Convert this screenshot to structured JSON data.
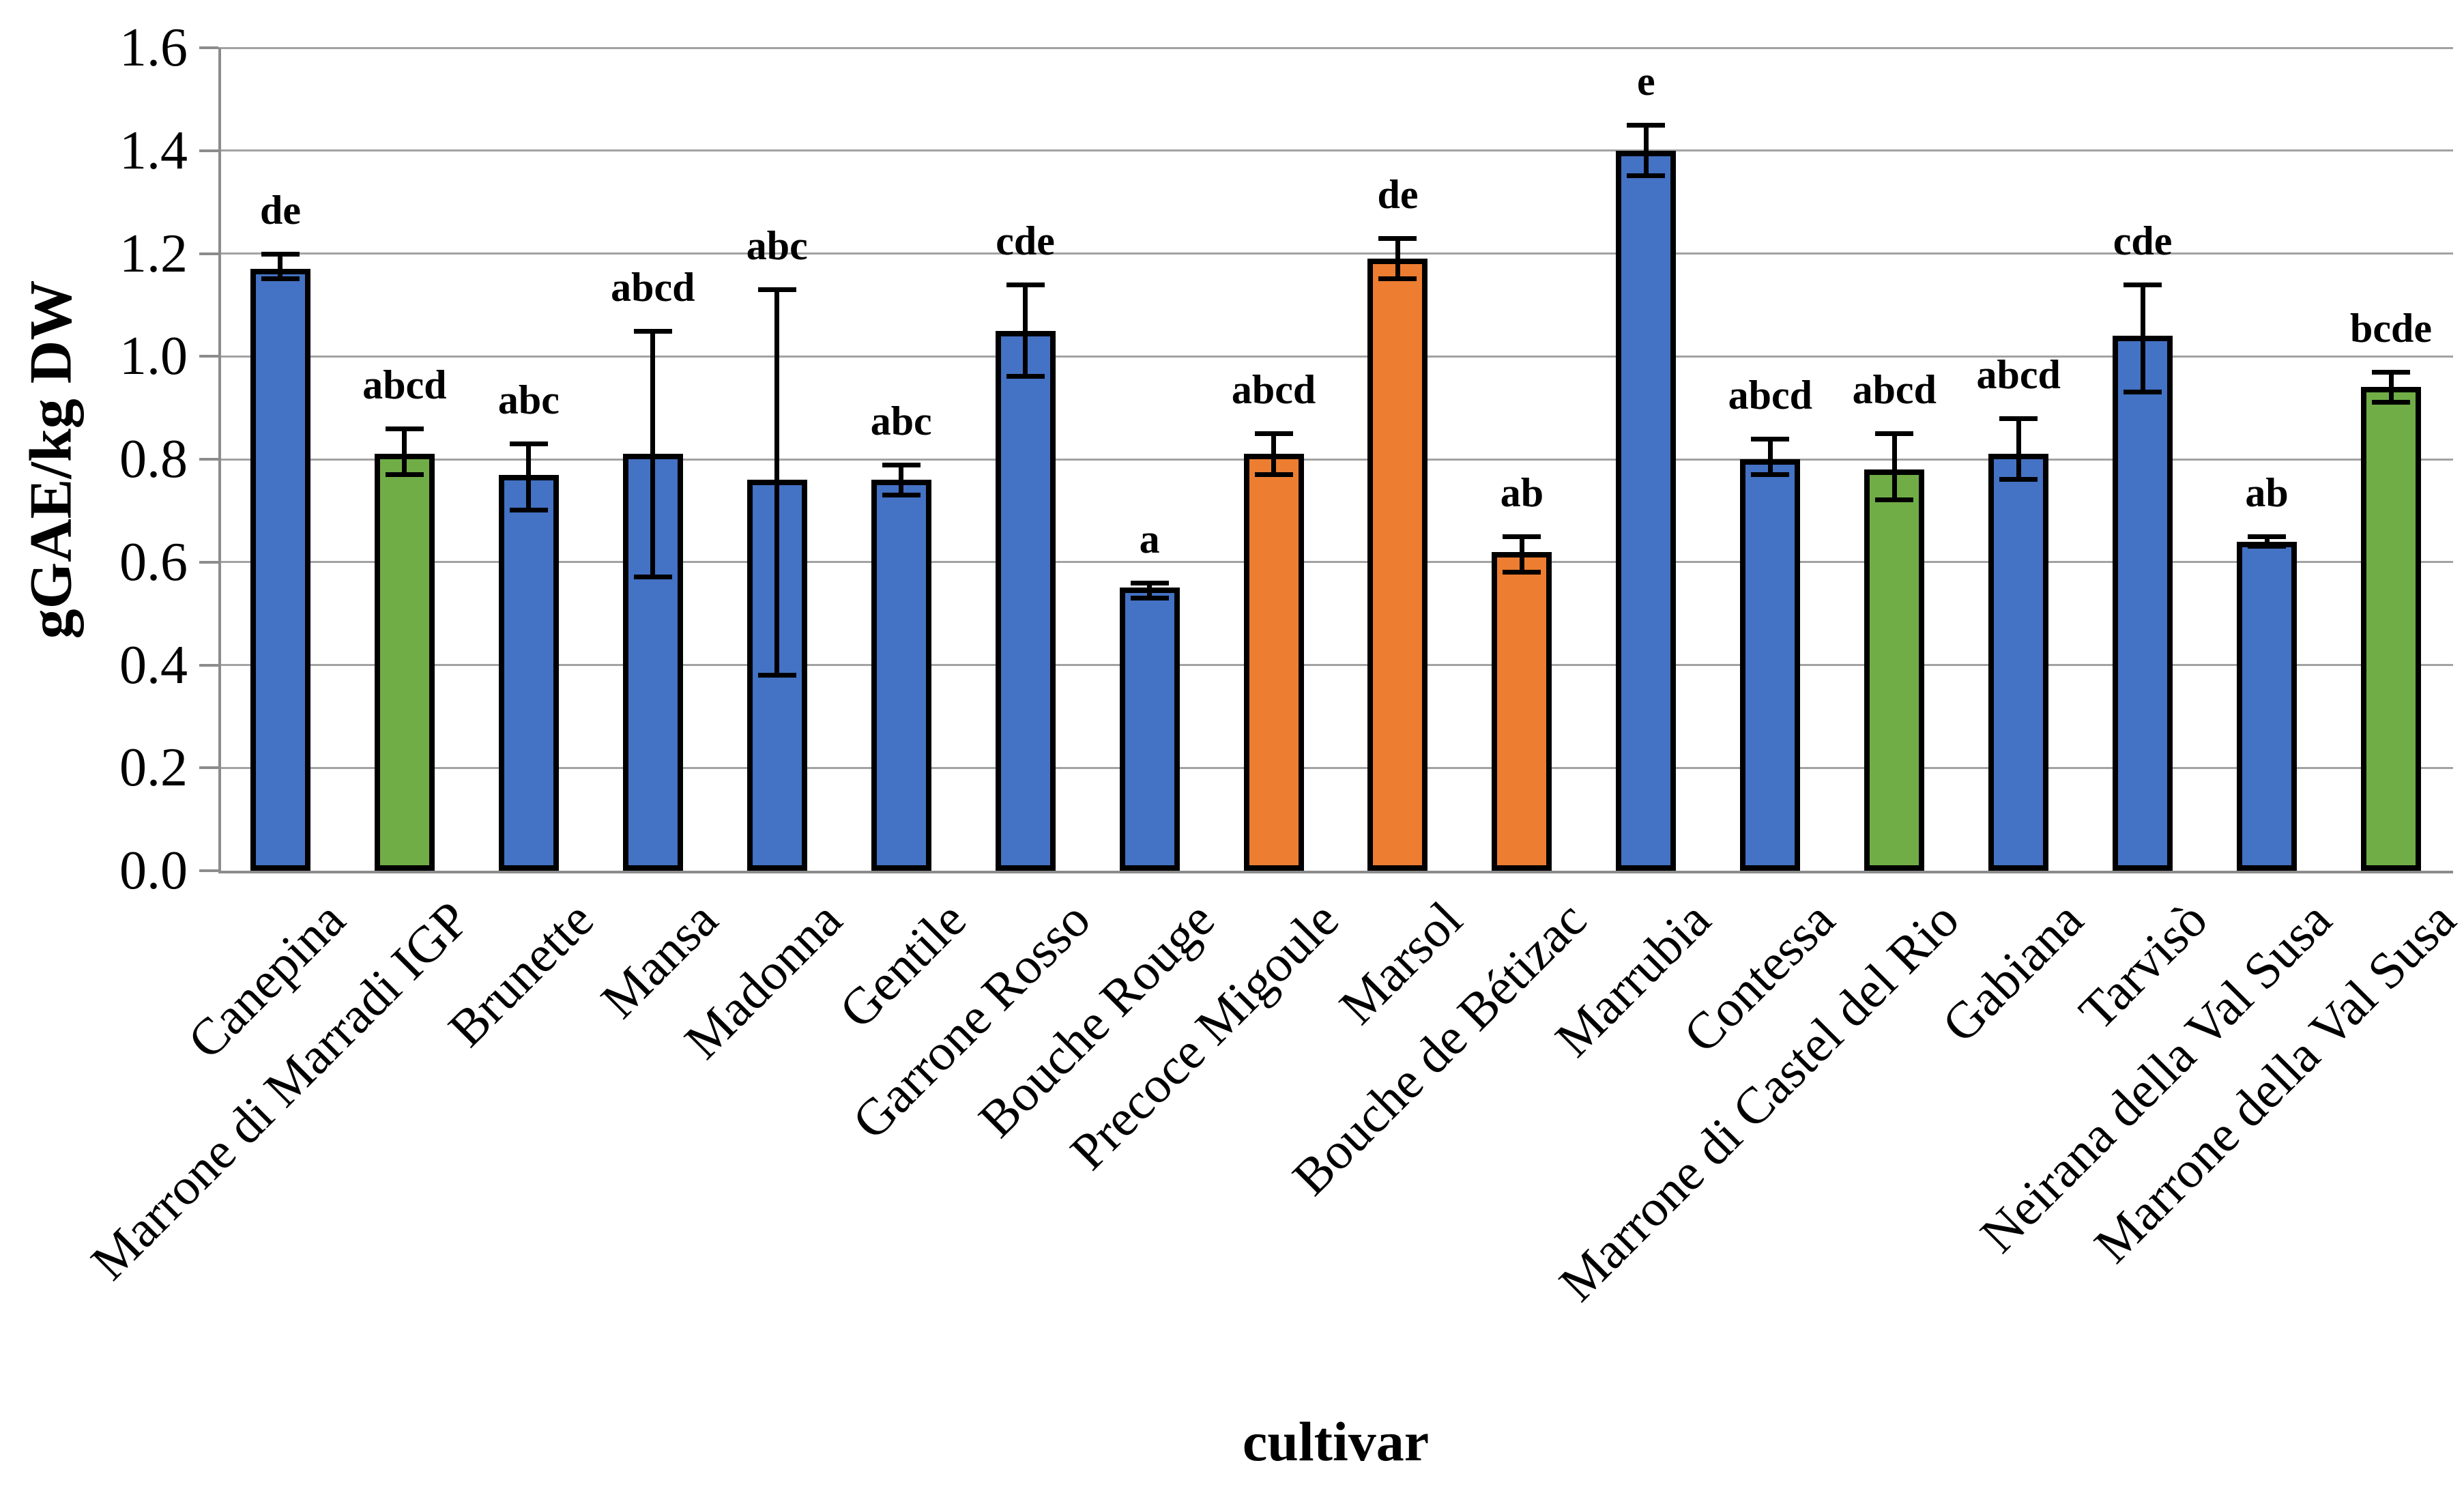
{
  "chart_data": {
    "type": "bar",
    "title": "",
    "xlabel": "cultivar",
    "ylabel": "gGAE/kg DW",
    "ylim": [
      0.0,
      1.6
    ],
    "ytick_step": 0.2,
    "ytick_labels": [
      "0.0",
      "0.2",
      "0.4",
      "0.6",
      "0.8",
      "1.0",
      "1.2",
      "1.4",
      "1.6"
    ],
    "grid": "horizontal-on",
    "legend": "none",
    "palette": {
      "blue": "#4472C4",
      "orange": "#ED7D31",
      "green": "#70AD47",
      "bar_border": "#000000",
      "error_bar": "#000000",
      "gridline": "#A2A2A2",
      "axis": "#8C8C8C"
    },
    "bars": [
      {
        "label": "Canepina",
        "value": 1.17,
        "err_low": 1.15,
        "err_high": 1.2,
        "letter": "de",
        "color_key": "blue"
      },
      {
        "label": "Marrone di Marradi IGP",
        "value": 0.81,
        "err_low": 0.77,
        "err_high": 0.86,
        "letter": "abcd",
        "color_key": "green"
      },
      {
        "label": "Brunette",
        "value": 0.77,
        "err_low": 0.7,
        "err_high": 0.83,
        "letter": "abc",
        "color_key": "blue"
      },
      {
        "label": "Mansa",
        "value": 0.81,
        "err_low": 0.57,
        "err_high": 1.05,
        "letter": "abcd",
        "color_key": "blue"
      },
      {
        "label": "Madonna",
        "value": 0.76,
        "err_low": 0.38,
        "err_high": 1.13,
        "letter": "abc",
        "color_key": "blue"
      },
      {
        "label": "Gentile",
        "value": 0.76,
        "err_low": 0.73,
        "err_high": 0.79,
        "letter": "abc",
        "color_key": "blue"
      },
      {
        "label": "Garrone Rosso",
        "value": 1.05,
        "err_low": 0.96,
        "err_high": 1.14,
        "letter": "cde",
        "color_key": "blue"
      },
      {
        "label": "Bouche Rouge",
        "value": 0.55,
        "err_low": 0.53,
        "err_high": 0.56,
        "letter": "a",
        "color_key": "blue"
      },
      {
        "label": "Precoce Migoule",
        "value": 0.81,
        "err_low": 0.77,
        "err_high": 0.85,
        "letter": "abcd",
        "color_key": "orange"
      },
      {
        "label": "Marsol",
        "value": 1.19,
        "err_low": 1.15,
        "err_high": 1.23,
        "letter": "de",
        "color_key": "orange"
      },
      {
        "label": "Bouche de Bétizac",
        "value": 0.62,
        "err_low": 0.58,
        "err_high": 0.65,
        "letter": "ab",
        "color_key": "orange"
      },
      {
        "label": "Marrubia",
        "value": 1.4,
        "err_low": 1.35,
        "err_high": 1.45,
        "letter": "e",
        "color_key": "blue"
      },
      {
        "label": "Contessa",
        "value": 0.8,
        "err_low": 0.77,
        "err_high": 0.84,
        "letter": "abcd",
        "color_key": "blue"
      },
      {
        "label": "Marrone di Castel del Rio",
        "value": 0.78,
        "err_low": 0.72,
        "err_high": 0.85,
        "letter": "abcd",
        "color_key": "green"
      },
      {
        "label": "Gabiana",
        "value": 0.81,
        "err_low": 0.76,
        "err_high": 0.88,
        "letter": "abcd",
        "color_key": "blue"
      },
      {
        "label": "Tarvisò",
        "value": 1.04,
        "err_low": 0.93,
        "err_high": 1.14,
        "letter": "cde",
        "color_key": "blue"
      },
      {
        "label": "Neirana della Val Susa",
        "value": 0.64,
        "err_low": 0.63,
        "err_high": 0.65,
        "letter": "ab",
        "color_key": "blue"
      },
      {
        "label": "Marrone della Val Susa",
        "value": 0.94,
        "err_low": 0.91,
        "err_high": 0.97,
        "letter": "bcde",
        "color_key": "green"
      }
    ]
  }
}
